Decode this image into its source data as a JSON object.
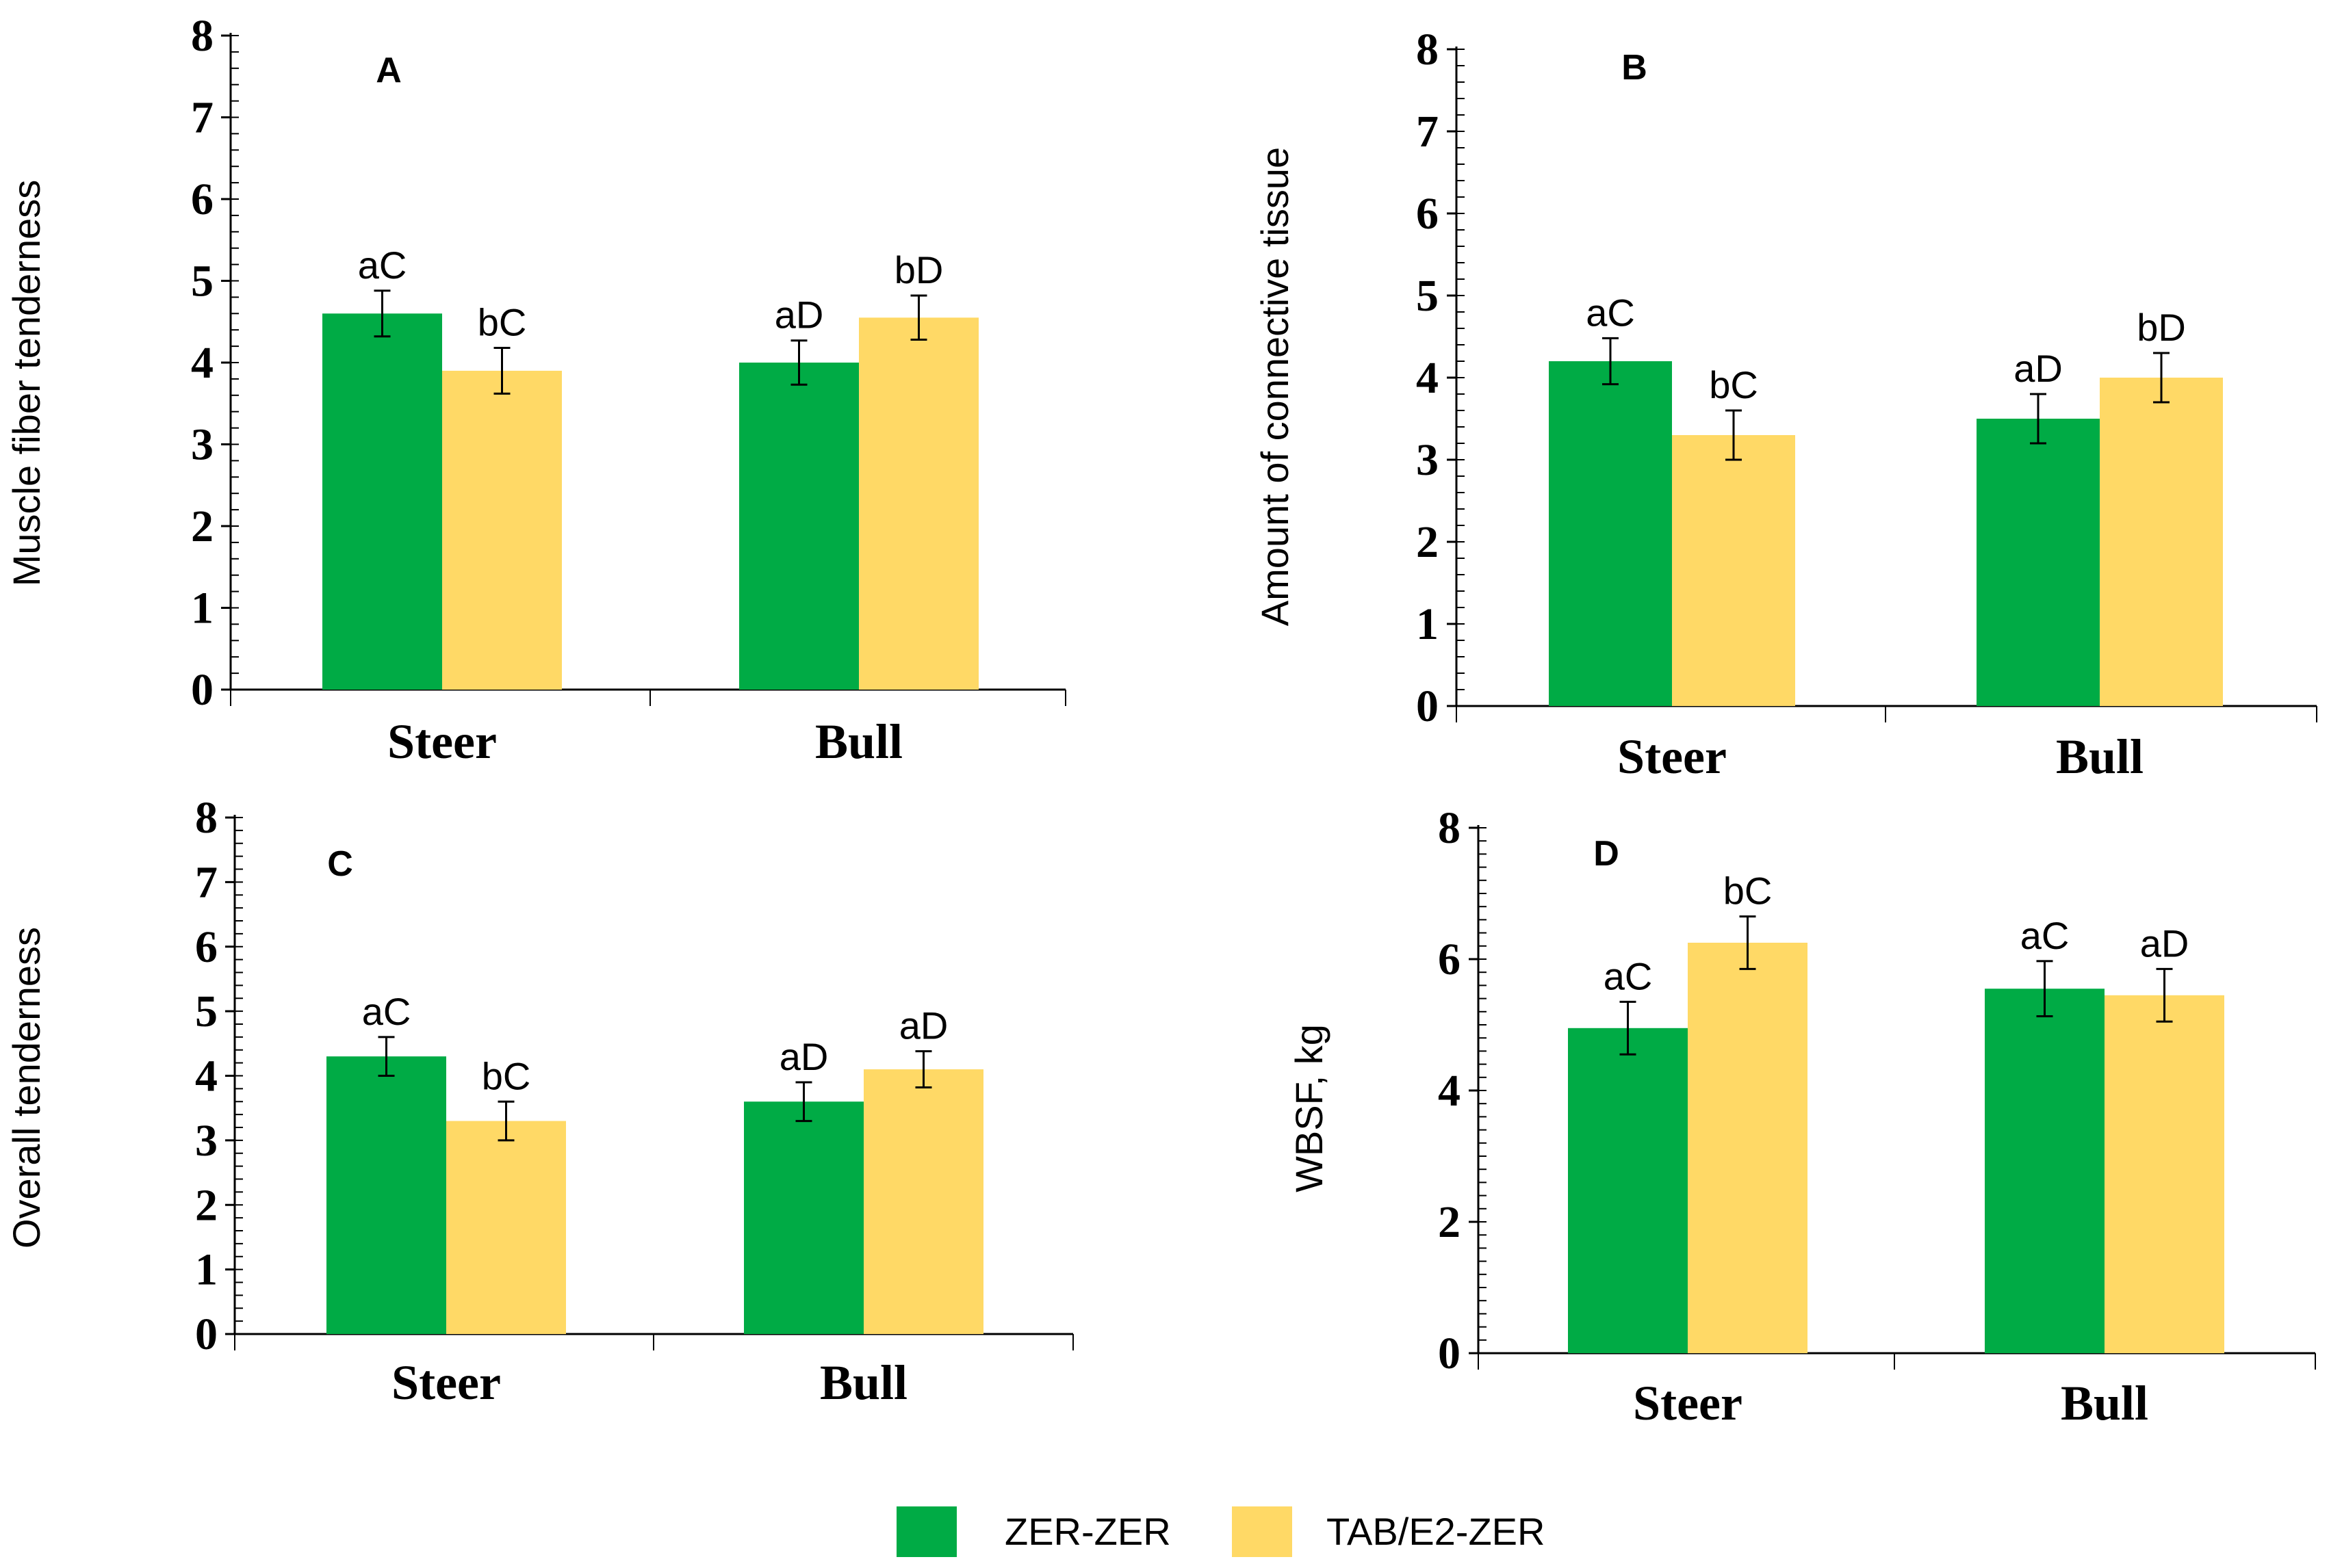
{
  "colors": {
    "zer_zer": "#00ab45",
    "tab_e2_zer": "#ffd966",
    "axis": "#000000"
  },
  "legend": {
    "items": [
      {
        "label": "ZER-ZER",
        "color": "#00ab45"
      },
      {
        "label": "TAB/E2-ZER",
        "color": "#ffd966"
      }
    ]
  },
  "chart_data": [
    {
      "type": "bar",
      "panel": "A",
      "ylabel": "Muscle fiber tenderness",
      "ylim": [
        0,
        8
      ],
      "yticks": [
        "0",
        "1",
        "2",
        "3",
        "4",
        "5",
        "6",
        "7",
        "8"
      ],
      "categories": [
        "Steer",
        "Bull"
      ],
      "series": [
        {
          "name": "ZER-ZER",
          "values": [
            4.6,
            4.0
          ],
          "errors": [
            0.28,
            0.27
          ],
          "labels": [
            "aC",
            "aD"
          ]
        },
        {
          "name": "TAB/E2-ZER",
          "values": [
            3.9,
            4.55
          ],
          "errors": [
            0.28,
            0.27
          ],
          "labels": [
            "bC",
            "bD"
          ]
        }
      ]
    },
    {
      "type": "bar",
      "panel": "B",
      "ylabel": "Amount of connective tissue",
      "ylim": [
        0,
        8
      ],
      "yticks": [
        "0",
        "1",
        "2",
        "3",
        "4",
        "5",
        "6",
        "7",
        "8"
      ],
      "categories": [
        "Steer",
        "Bull"
      ],
      "series": [
        {
          "name": "ZER-ZER",
          "values": [
            4.2,
            3.5
          ],
          "errors": [
            0.28,
            0.3
          ],
          "labels": [
            "aC",
            "aD"
          ]
        },
        {
          "name": "TAB/E2-ZER",
          "values": [
            3.3,
            4.0
          ],
          "errors": [
            0.3,
            0.3
          ],
          "labels": [
            "bC",
            "bD"
          ]
        }
      ]
    },
    {
      "type": "bar",
      "panel": "C",
      "ylabel": "Overall tenderness",
      "ylim": [
        0,
        8
      ],
      "yticks": [
        "0",
        "1",
        "2",
        "3",
        "4",
        "5",
        "6",
        "7",
        "8"
      ],
      "categories": [
        "Steer",
        "Bull"
      ],
      "series": [
        {
          "name": "ZER-ZER",
          "values": [
            4.3,
            3.6
          ],
          "errors": [
            0.3,
            0.3
          ],
          "labels": [
            "aC",
            "aD"
          ]
        },
        {
          "name": "TAB/E2-ZER",
          "values": [
            3.3,
            4.1
          ],
          "errors": [
            0.3,
            0.28
          ],
          "labels": [
            "bC",
            "aD"
          ]
        }
      ]
    },
    {
      "type": "bar",
      "panel": "D",
      "ylabel": "WBSF, kg",
      "ylim": [
        0,
        8
      ],
      "yticks": [
        "0",
        "2",
        "4",
        "6",
        "8"
      ],
      "categories": [
        "Steer",
        "Bull"
      ],
      "series": [
        {
          "name": "ZER-ZER",
          "values": [
            4.95,
            5.55
          ],
          "errors": [
            0.4,
            0.42
          ],
          "labels": [
            "aC",
            "aC"
          ]
        },
        {
          "name": "TAB/E2-ZER",
          "values": [
            6.25,
            5.45
          ],
          "errors": [
            0.4,
            0.4
          ],
          "labels": [
            "bC",
            "aD"
          ]
        }
      ]
    }
  ]
}
